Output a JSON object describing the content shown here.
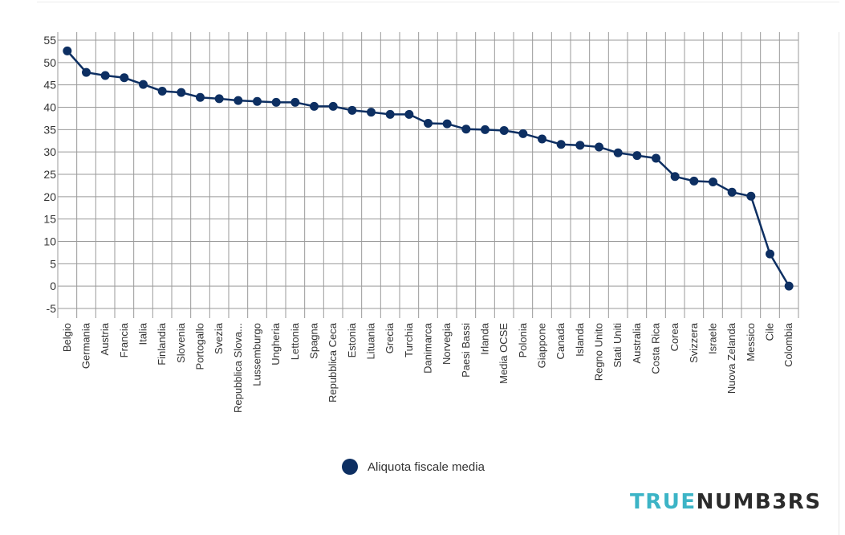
{
  "colors": {
    "series": "#0d2f62",
    "grid": "#9a9a9a",
    "brand_accent": "#3cb4c6",
    "brand_dark": "#2b2b2b"
  },
  "chart_data": {
    "type": "line",
    "title": "",
    "xlabel": "",
    "ylabel": "",
    "ylim": [
      -5,
      55
    ],
    "yticks": [
      55,
      50,
      45,
      40,
      35,
      30,
      25,
      20,
      15,
      10,
      5,
      0,
      -5
    ],
    "grid": true,
    "legend_position": "bottom",
    "categories": [
      "Belgio",
      "Germania",
      "Austria",
      "Francia",
      "Italia",
      "Finlandia",
      "Slovenia",
      "Portogallo",
      "Svezia",
      "Repubblica Slova...",
      "Lussemburgo",
      "Ungheria",
      "Lettonia",
      "Spagna",
      "Repubblica Ceca",
      "Estonia",
      "Lituania",
      "Grecia",
      "Turchia",
      "Danimarca",
      "Norvegia",
      "Paesi Bassi",
      "Irlanda",
      "Media OCSE",
      "Polonia",
      "Giappone",
      "Canada",
      "Islanda",
      "Regno Unito",
      "Stati Uniti",
      "Australia",
      "Costa Rica",
      "Corea",
      "Svizzera",
      "Israele",
      "Nuova Zelanda",
      "Messico",
      "Cile",
      "Colombia"
    ],
    "series": [
      {
        "name": "Aliquota fiscale media",
        "values": [
          52.6,
          47.8,
          47.1,
          46.6,
          45.1,
          43.6,
          43.3,
          42.2,
          41.9,
          41.5,
          41.3,
          41.1,
          41.1,
          40.2,
          40.2,
          39.3,
          38.9,
          38.4,
          38.4,
          36.4,
          36.3,
          35.1,
          35.0,
          34.8,
          34.1,
          32.9,
          31.7,
          31.5,
          31.1,
          29.8,
          29.2,
          28.6,
          24.5,
          23.5,
          23.3,
          21.0,
          20.1,
          7.2,
          0.0
        ]
      }
    ]
  },
  "legend": {
    "label": "Aliquota fiscale media"
  },
  "brand": {
    "part1": "TRUE",
    "part2": "NUMB3RS"
  }
}
